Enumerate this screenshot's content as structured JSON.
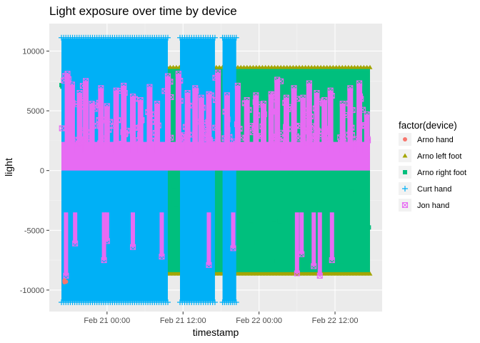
{
  "chart_data": {
    "type": "scatter",
    "title": "Light exposure over time by device",
    "xlabel": "timestamp",
    "ylabel": "light",
    "x_ticks": [
      "Feb 21 00:00",
      "Feb 21 12:00",
      "Feb 22 00:00",
      "Feb 22 12:00"
    ],
    "x_tick_values": [
      21.0,
      21.5,
      22.0,
      22.5
    ],
    "xlim": [
      20.62,
      22.81
    ],
    "y_ticks": [
      -10000,
      -5000,
      0,
      5000,
      10000
    ],
    "ylim": [
      -11800,
      12300
    ],
    "grid": true,
    "legend_position": "right",
    "legend_title": "factor(device)",
    "series": [
      {
        "name": "Arno hand",
        "marker": "circle",
        "color": "#F8766D",
        "points": [
          [
            20.72,
            -9250
          ],
          [
            20.72,
            -9350
          ],
          [
            20.73,
            -9300
          ],
          [
            20.72,
            -9200
          ]
        ]
      },
      {
        "name": "Arno left foot",
        "marker": "triangle",
        "color": "#A3A500",
        "bands": [
          {
            "x": [
              20.93,
              22.73
            ],
            "y": [
              -8700,
              8700
            ]
          }
        ]
      },
      {
        "name": "Arno right foot",
        "marker": "square",
        "color": "#00BF7D",
        "bands": [
          {
            "x": [
              20.7,
              22.73
            ],
            "y": [
              -8500,
              8500
            ]
          }
        ]
      },
      {
        "name": "Curt hand",
        "marker": "plus",
        "color": "#00B0F6",
        "bands": [
          {
            "x": [
              20.7,
              21.4
            ],
            "y": [
              -11200,
              11300
            ]
          },
          {
            "x": [
              21.48,
              21.71
            ],
            "y": [
              -11200,
              11300
            ]
          },
          {
            "x": [
              21.76,
              21.85
            ],
            "y": [
              -11200,
              11300
            ]
          }
        ]
      },
      {
        "name": "Jon hand",
        "marker": "box",
        "color": "#E76BF3",
        "bands": [
          {
            "x": [
              20.7,
              22.73
            ],
            "y": [
              0,
              2400
            ]
          }
        ],
        "peaks": [
          [
            20.74,
            8100
          ],
          [
            20.77,
            7200
          ],
          [
            20.82,
            6500
          ],
          [
            20.86,
            7500
          ],
          [
            20.9,
            5600
          ],
          [
            20.96,
            6900
          ],
          [
            21.0,
            5400
          ],
          [
            21.06,
            6700
          ],
          [
            21.11,
            7100
          ],
          [
            21.17,
            6200
          ],
          [
            21.22,
            5900
          ],
          [
            21.28,
            7000
          ],
          [
            21.33,
            5600
          ],
          [
            21.4,
            7900
          ],
          [
            21.47,
            8100
          ],
          [
            21.53,
            6500
          ],
          [
            21.58,
            6900
          ],
          [
            21.62,
            6100
          ],
          [
            21.67,
            6400
          ],
          [
            21.73,
            8200
          ],
          [
            21.79,
            6300
          ],
          [
            21.86,
            7100
          ],
          [
            21.92,
            5900
          ],
          [
            21.98,
            6300
          ],
          [
            22.03,
            5600
          ],
          [
            22.08,
            6400
          ],
          [
            22.12,
            7600
          ],
          [
            22.18,
            6100
          ],
          [
            22.23,
            6900
          ],
          [
            22.29,
            6100
          ],
          [
            22.33,
            7300
          ],
          [
            22.38,
            6500
          ],
          [
            22.43,
            5900
          ],
          [
            22.47,
            6700
          ],
          [
            22.55,
            5600
          ],
          [
            22.6,
            6900
          ],
          [
            22.66,
            7300
          ],
          [
            22.71,
            4700
          ]
        ],
        "troughs": [
          [
            20.73,
            -8800
          ],
          [
            20.79,
            -6100
          ],
          [
            20.98,
            -7500
          ],
          [
            21.0,
            -5900
          ],
          [
            21.17,
            -6400
          ],
          [
            21.36,
            -7200
          ],
          [
            21.67,
            -7900
          ],
          [
            21.83,
            -6500
          ],
          [
            22.25,
            -8600
          ],
          [
            22.28,
            -7000
          ],
          [
            22.36,
            -8000
          ],
          [
            22.4,
            -8800
          ],
          [
            22.48,
            -7500
          ]
        ]
      }
    ]
  }
}
